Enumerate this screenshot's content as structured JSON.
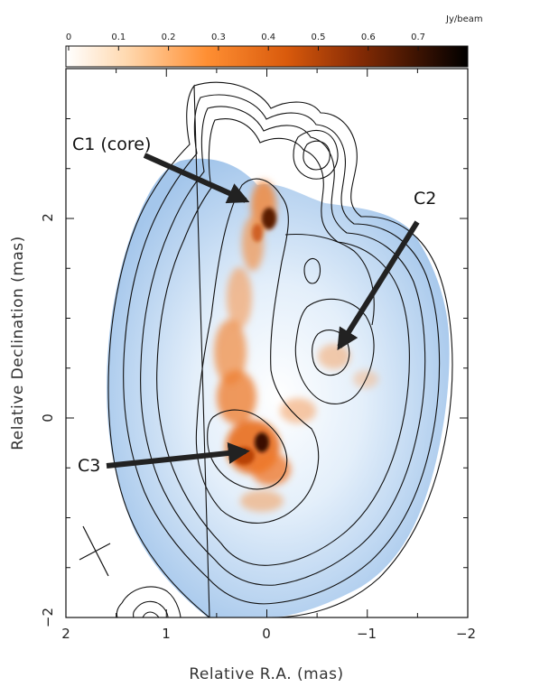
{
  "colorbar": {
    "unit": "Jy/beam",
    "ticks": [
      "0",
      "0.1",
      "0.2",
      "0.3",
      "0.4",
      "0.5",
      "0.6",
      "0.7"
    ],
    "colors": [
      "#ffffff",
      "#ffd9b0",
      "#ff9a40",
      "#e86010",
      "#b03a05",
      "#6a2004",
      "#2a0c02",
      "#000000"
    ]
  },
  "axes": {
    "xlabel": "Relative R.A. (mas)",
    "ylabel": "Relative Declination (mas)",
    "x_ticks": [
      "2",
      "1",
      "0",
      "−1",
      "−2"
    ],
    "y_ticks": [
      "−2",
      "0",
      "2"
    ]
  },
  "annotations": [
    {
      "id": "c1",
      "label": "C1 (core)"
    },
    {
      "id": "c2",
      "label": "C2"
    },
    {
      "id": "c3",
      "label": "C3"
    }
  ],
  "colors": {
    "blue_emission": "#a9c9ec",
    "orange_emission": "#e8650f",
    "contours": "#111111"
  }
}
